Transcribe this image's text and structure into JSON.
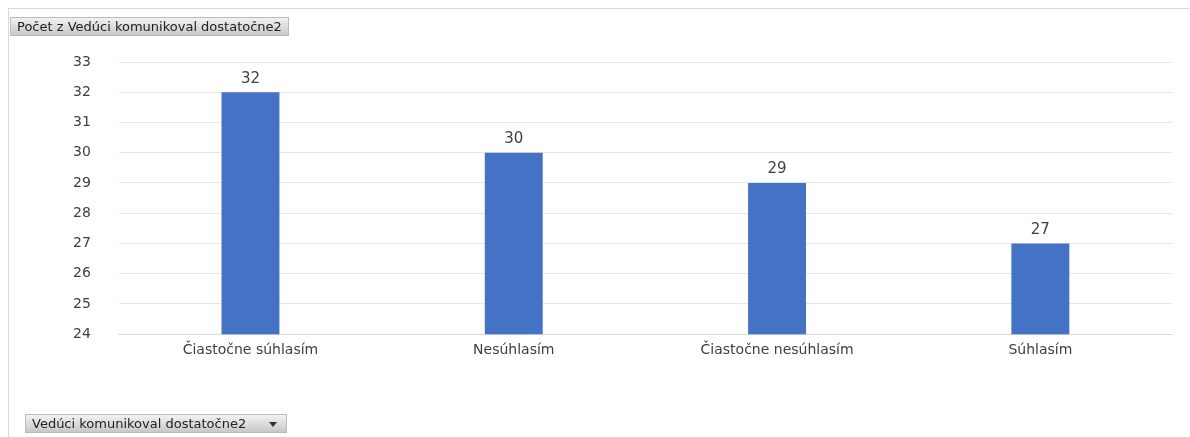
{
  "chart_data": {
    "type": "bar",
    "title": "Počet z Vedúci komunikoval dostatočne2",
    "xlabel": "Vedúci komunikoval dostatočne2",
    "categories": [
      "Čiastočne súhlasím",
      "Nesúhlasím",
      "Čiastočne nesúhlasím",
      "Súhlasím"
    ],
    "values": [
      32,
      30,
      29,
      27
    ],
    "color": "#4472c4",
    "ylim": [
      24,
      33
    ],
    "yticks": [
      24,
      25,
      26,
      27,
      28,
      29,
      30,
      31,
      32,
      33
    ],
    "grid": "y",
    "data_labels": true,
    "legend": false
  }
}
